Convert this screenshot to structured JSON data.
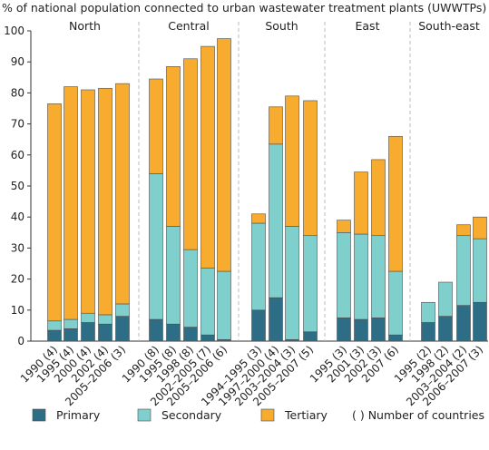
{
  "chart_data": {
    "type": "bar",
    "stacked": true,
    "title": "% of national population connected to urban wastewater treatment plants (UWWTPs)",
    "ylim": [
      0,
      100
    ],
    "yticks": [
      0,
      10,
      20,
      30,
      40,
      50,
      60,
      70,
      80,
      90,
      100
    ],
    "grid": false,
    "legend_position": "bottom",
    "colors": {
      "Primary": "#2e6d86",
      "Secondary": "#7fcfcd",
      "Tertiary": "#f7ab2f"
    },
    "groups": [
      {
        "name": "North",
        "categories": [
          "1990 (4)",
          "1995 (4)",
          "2000 (4)",
          "2002 (4)",
          "2005–2006 (3)"
        ],
        "primary": [
          3.5,
          4,
          6,
          5.5,
          8
        ],
        "secondary": [
          3,
          3,
          3,
          3,
          4
        ],
        "tertiary": [
          70,
          75,
          72,
          73,
          71
        ]
      },
      {
        "name": "Central",
        "categories": [
          "1990 (8)",
          "1995 (8)",
          "1998 (8)",
          "2002–2005 (7)",
          "2005–2006 (6)"
        ],
        "primary": [
          7,
          5.5,
          4.5,
          2,
          0.5
        ],
        "secondary": [
          47,
          31.5,
          25,
          21.5,
          22
        ],
        "tertiary": [
          30.5,
          51.5,
          61.5,
          71.5,
          75
        ]
      },
      {
        "name": "South",
        "categories": [
          "1994–1995 (3)",
          "1997–2000 (4)",
          "2003–2004 (3)",
          "2005–2007 (5)"
        ],
        "primary": [
          10,
          14,
          0.5,
          3
        ],
        "secondary": [
          28,
          49.5,
          36.5,
          31
        ],
        "tertiary": [
          3,
          12,
          42,
          43.5
        ]
      },
      {
        "name": "East",
        "categories": [
          "1995 (3)",
          "2001 (3)",
          "2002 (3)",
          "2007 (6)"
        ],
        "primary": [
          7.5,
          7,
          7.5,
          2
        ],
        "secondary": [
          27.5,
          27.5,
          26.5,
          20.5
        ],
        "tertiary": [
          4,
          20,
          24.5,
          43.5
        ]
      },
      {
        "name": "South-east",
        "categories": [
          "1995 (2)",
          "1998 (2)",
          "2003–2004 (2)",
          "2006–2007 (3)"
        ],
        "primary": [
          6,
          8,
          11.5,
          12.5
        ],
        "secondary": [
          6.5,
          11,
          22.5,
          20.5
        ],
        "tertiary": [
          0,
          0,
          3.5,
          7
        ]
      }
    ],
    "series": [
      {
        "name": "Primary"
      },
      {
        "name": "Secondary"
      },
      {
        "name": "Tertiary"
      }
    ],
    "legend_note": "( )  Number of countries"
  }
}
